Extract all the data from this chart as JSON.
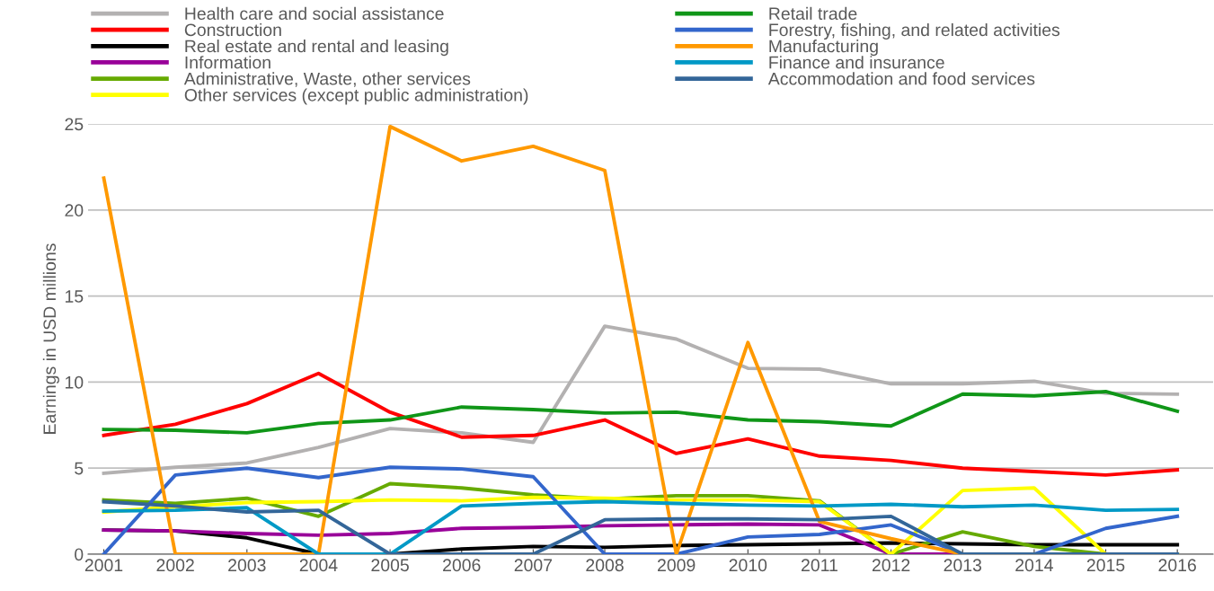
{
  "chart_data": {
    "type": "line",
    "ylabel": "Earnings in USD millions",
    "ylim": [
      0,
      25
    ],
    "yticks": [
      0,
      5,
      10,
      15,
      20,
      25
    ],
    "grid": "y",
    "legend": "top",
    "marker": "none",
    "line_style": "solid",
    "categories": [
      "2001",
      "2002",
      "2003",
      "2004",
      "2005",
      "2006",
      "2007",
      "2008",
      "2009",
      "2010",
      "2011",
      "2012",
      "2013",
      "2014",
      "2015",
      "2016"
    ],
    "series": [
      {
        "name": "Health care and social assistance",
        "color": "#b3b1b1",
        "values": [
          4.7,
          5.05,
          5.3,
          6.2,
          7.3,
          7.05,
          6.5,
          13.25,
          12.5,
          10.8,
          10.75,
          9.9,
          9.9,
          10.05,
          9.35,
          9.3
        ]
      },
      {
        "name": "Construction",
        "color": "#ff0000",
        "values": [
          6.9,
          7.55,
          8.75,
          10.5,
          8.25,
          6.8,
          6.9,
          7.8,
          5.85,
          6.7,
          5.7,
          5.45,
          5.0,
          4.8,
          4.6,
          4.9
        ]
      },
      {
        "name": "Real estate and rental and leasing",
        "color": "#000000",
        "values": [
          1.4,
          1.35,
          0.95,
          0,
          0,
          0.3,
          0.45,
          0.4,
          0.5,
          0.55,
          0.6,
          0.65,
          0.6,
          0.55,
          0.55,
          0.55
        ]
      },
      {
        "name": "Information",
        "color": "#990099",
        "values": [
          1.4,
          1.35,
          1.2,
          1.1,
          1.2,
          1.5,
          1.55,
          1.65,
          1.7,
          1.75,
          1.7,
          0,
          0,
          0,
          null,
          null
        ]
      },
      {
        "name": "Administrative, Waste, other services",
        "color": "#66aa00",
        "values": [
          3.15,
          2.95,
          3.25,
          2.2,
          4.1,
          3.85,
          3.45,
          3.2,
          3.4,
          3.4,
          3.1,
          0,
          1.3,
          0.45,
          0,
          0
        ]
      },
      {
        "name": "Other services (except public administration)",
        "color": "#ffff00",
        "values": [
          2.45,
          2.75,
          3.0,
          3.05,
          3.15,
          3.1,
          3.3,
          3.25,
          3.15,
          3.15,
          3.05,
          0,
          3.7,
          3.85,
          0,
          0
        ]
      },
      {
        "name": "Retail trade",
        "color": "#109618",
        "values": [
          7.25,
          7.2,
          7.05,
          7.6,
          7.8,
          8.55,
          8.4,
          8.2,
          8.25,
          7.8,
          7.7,
          7.45,
          9.3,
          9.2,
          9.45,
          8.3
        ]
      },
      {
        "name": "Forestry, fishing, and related activities",
        "color": "#3366cc",
        "values": [
          0,
          4.6,
          5.0,
          4.45,
          5.05,
          4.95,
          4.5,
          0,
          0,
          1.0,
          1.15,
          1.7,
          0,
          0,
          1.5,
          2.2
        ]
      },
      {
        "name": "Manufacturing",
        "color": "#ff9900",
        "values": [
          21.85,
          0,
          0,
          0,
          24.85,
          22.85,
          23.7,
          22.3,
          0,
          12.3,
          1.9,
          0.9,
          0,
          0,
          null,
          null
        ]
      },
      {
        "name": "Finance and insurance",
        "color": "#0099c6",
        "values": [
          2.5,
          2.55,
          2.7,
          0,
          0,
          2.8,
          2.95,
          3.05,
          2.95,
          2.85,
          2.8,
          2.9,
          2.75,
          2.85,
          2.55,
          2.6
        ]
      },
      {
        "name": "Accommodation and food services",
        "color": "#336699",
        "values": [
          3.05,
          2.8,
          2.45,
          2.55,
          0,
          0,
          0,
          2.0,
          2.05,
          2.05,
          2.0,
          2.2,
          0,
          0,
          0,
          0
        ]
      }
    ]
  }
}
